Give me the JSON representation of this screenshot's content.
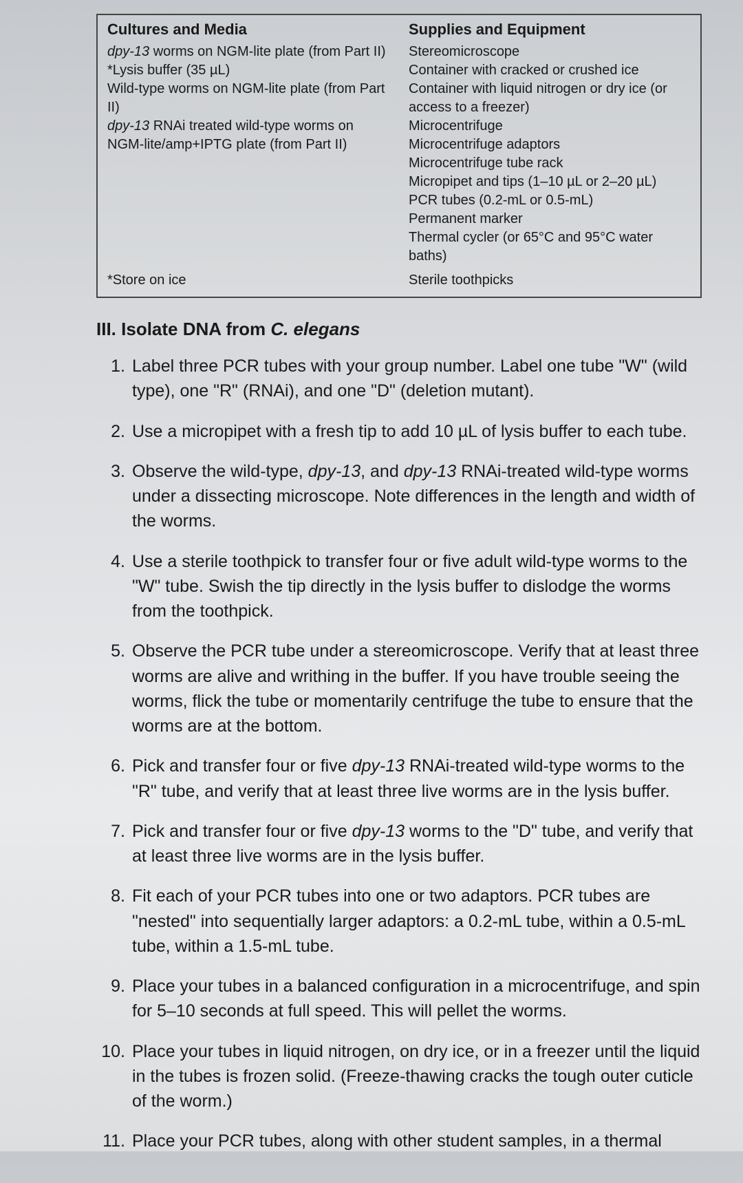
{
  "table": {
    "headers": {
      "cultures": "Cultures and Media",
      "supplies": "Supplies and Equipment"
    },
    "cultures_items": [
      {
        "prefix_italic": "dpy-13",
        "rest": " worms on NGM-lite plate (from Part II)"
      },
      {
        "plain": "*Lysis buffer (35 µL)"
      },
      {
        "plain": "Wild-type worms on NGM-lite plate (from Part II)"
      },
      {
        "prefix_italic": "dpy-13",
        "rest": " RNAi treated wild-type worms on NGM-lite/amp+IPTG plate (from Part II)"
      }
    ],
    "supplies_items": [
      "Stereomicroscope",
      "Container with cracked or crushed ice",
      "Container with liquid nitrogen or dry ice (or access to a freezer)",
      "Microcentrifuge",
      "Microcentrifuge adaptors",
      "Microcentrifuge tube rack",
      "Micropipet and tips (1–10 µL or 2–20 µL)",
      "PCR tubes (0.2-mL or 0.5-mL)",
      "Permanent marker",
      "Thermal cycler (or 65°C and 95°C water baths)",
      "Sterile toothpicks"
    ],
    "footnote": "*Store on ice"
  },
  "section": {
    "number": "III.",
    "title_prefix": "Isolate DNA from ",
    "title_italic": "C. elegans"
  },
  "steps": [
    {
      "n": "1.",
      "text": "Label three PCR tubes with your group number. Label one tube \"W\" (wild type), one \"R\" (RNAi), and one \"D\" (deletion mutant)."
    },
    {
      "n": "2.",
      "text": "Use a micropipet with a fresh tip to add 10 µL of lysis buffer to each tube."
    },
    {
      "n": "3.",
      "pre": "Observe the wild-type, ",
      "it1": "dpy-13",
      "mid": ", and ",
      "it2": "dpy-13",
      "post": " RNAi-treated wild-type worms under a dissecting microscope. Note differences in the length and width of the worms."
    },
    {
      "n": "4.",
      "text": "Use a sterile toothpick to transfer four or five adult wild-type worms to the \"W\" tube. Swish the tip directly in the lysis buffer to dislodge the worms from the toothpick."
    },
    {
      "n": "5.",
      "text": "Observe the PCR tube under a stereomicroscope. Verify that at least three worms are alive and writhing in the buffer. If you have trouble seeing the worms, flick the tube or momentarily centrifuge the tube to ensure that the worms are at the bottom."
    },
    {
      "n": "6.",
      "pre": "Pick and transfer four or five ",
      "it1": "dpy-13",
      "post": " RNAi-treated wild-type worms to the \"R\" tube, and verify that at least three live worms are in the lysis buffer."
    },
    {
      "n": "7.",
      "pre": "Pick and transfer four or five ",
      "it1": "dpy-13",
      "post": " worms to the \"D\" tube, and verify that at least three live worms are in the lysis buffer."
    },
    {
      "n": "8.",
      "text": "Fit each of your PCR tubes into one or two adaptors. PCR tubes are \"nested\" into sequentially larger adaptors: a 0.2-mL tube, within a 0.5-mL tube, within a 1.5-mL tube."
    },
    {
      "n": "9.",
      "text": "Place your tubes in a balanced configuration in a microcentrifuge, and spin for 5–10 seconds at full speed. This will pellet the worms."
    },
    {
      "n": "10.",
      "text": "Place your tubes in liquid nitrogen, on dry ice, or in a freezer until the liquid in the tubes is frozen solid. (Freeze-thawing cracks the tough outer cuticle of the worm.)"
    },
    {
      "n": "11.",
      "text": "Place your PCR tubes, along with other student samples, in a thermal"
    }
  ],
  "colors": {
    "text": "#1a1a1a",
    "border": "#444444",
    "bg_top": "#c5c8cc",
    "bg_bottom": "#dcdee0"
  },
  "typography": {
    "body_font": "Arial, sans-serif",
    "table_fontsize": 20,
    "heading_fontsize": 26,
    "step_fontsize": 25
  }
}
